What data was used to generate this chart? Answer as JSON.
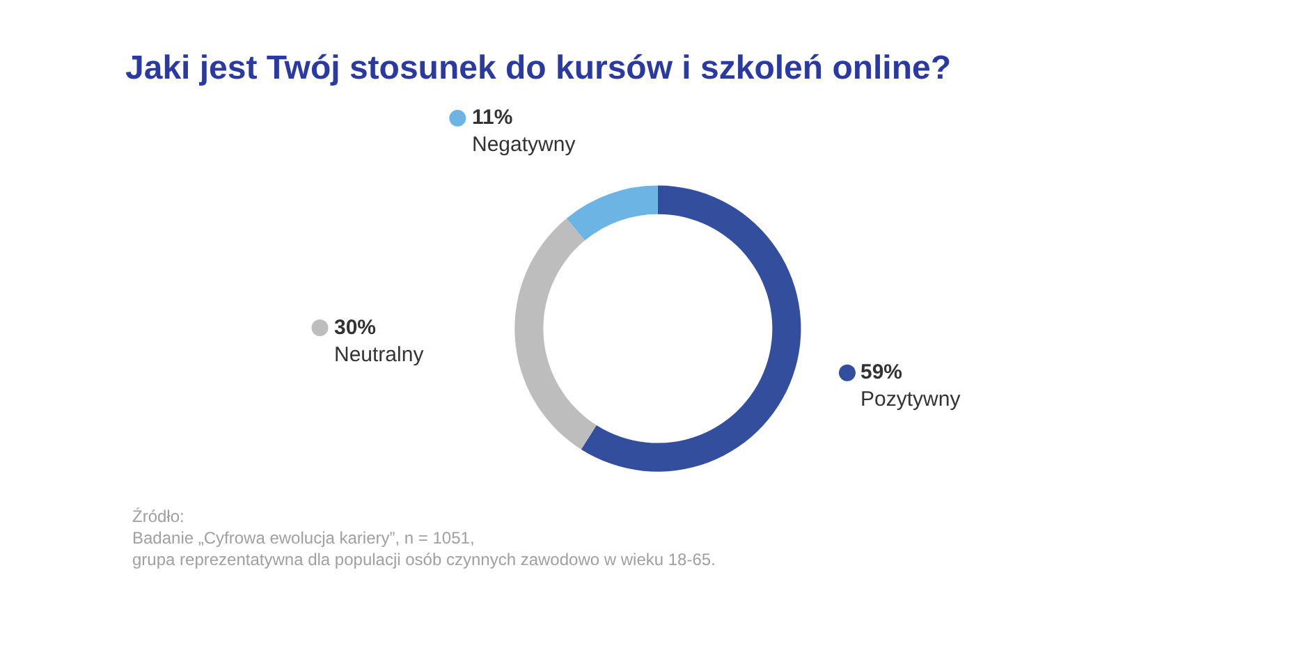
{
  "chart_data": {
    "type": "donut",
    "title": "Jaki jest Twój stosunek do kursów i szkoleń online?",
    "categories": [
      "Pozytywny",
      "Neutralny",
      "Negatywny"
    ],
    "values": [
      59,
      30,
      11
    ],
    "colors": [
      "#334e9c",
      "#bdbdbd",
      "#6cb4e4"
    ],
    "value_labels": [
      "59%",
      "30%",
      "11%"
    ],
    "legend": "top left",
    "annotations": [
      "Źródło:\nBadanie „Cyfrowa ewolucja kariery”, n = 1051,\ngrupa reprezentatywna dla populacji osób czynnych zawodowo w wieku 18-65."
    ]
  }
}
